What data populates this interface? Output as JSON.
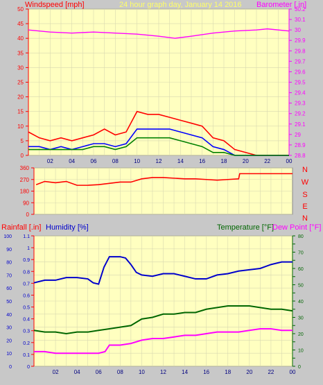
{
  "panel1": {
    "title": "24 hour graph day,  January 14 2016",
    "left_label": "Windspeed [mph]",
    "right_label": "Barometer [.in]",
    "colors": {
      "title": "#ffff66",
      "left": "#ff0000",
      "right": "#ff00ff"
    }
  },
  "panel2": {
    "left_ticks": [
      "360",
      "270",
      "180",
      "90",
      "0"
    ],
    "right_labels": [
      "N",
      "W",
      "S",
      "E",
      "N"
    ]
  },
  "panel3": {
    "rain_label": "Rainfall [.in]",
    "humidity_label": "Humidity [%]",
    "temp_label": "Temperature [°F]",
    "dew_label": "Dew Point [°F]",
    "colors": {
      "rain": "#ff0000",
      "humidity": "#0000cc",
      "temp": "#006600",
      "dew": "#ff00ff"
    }
  },
  "x_ticks": [
    "02",
    "04",
    "06",
    "08",
    "10",
    "12",
    "14",
    "16",
    "18",
    "20",
    "22",
    "00"
  ],
  "chart_data": [
    {
      "type": "line",
      "title": "24 hour graph day,  January 14 2016",
      "ylabel": "Windspeed [mph]",
      "y2label": "Barometer [.in]",
      "ylim": [
        0,
        50
      ],
      "y_ticks": [
        0,
        5,
        10,
        15,
        20,
        25,
        30,
        35,
        40,
        45,
        50
      ],
      "y2lim": [
        28.8,
        30.2
      ],
      "y2_ticks": [
        "28.8",
        "28.9",
        "29",
        "29.1",
        "29.2",
        "29.3",
        "29.4",
        "29.5",
        "29.6",
        "29.7",
        "29.8",
        "29.9",
        "30",
        "30.1",
        "30.2"
      ],
      "series": [
        {
          "name": "Barometer",
          "axis": "right",
          "color": "#ff00ff",
          "x": [
            0,
            2,
            4,
            6,
            8,
            10,
            12,
            13.5,
            15,
            17,
            19,
            21,
            22,
            24
          ],
          "y": [
            30.0,
            29.98,
            29.97,
            29.98,
            29.97,
            29.96,
            29.94,
            29.92,
            29.94,
            29.97,
            29.99,
            30.0,
            30.01,
            29.99
          ]
        },
        {
          "axis": "left",
          "color": "#ff0000",
          "x": [
            0,
            1,
            2,
            3,
            4,
            5,
            6,
            7,
            8,
            9,
            10,
            11,
            12,
            13,
            14,
            15,
            16,
            17,
            18,
            19,
            20,
            21,
            22,
            23,
            24
          ],
          "y": [
            8,
            6,
            5,
            6,
            5,
            6,
            7,
            9,
            7,
            8,
            15,
            14,
            14,
            13,
            12,
            11,
            10,
            6,
            5,
            2,
            1,
            0,
            0,
            0,
            0
          ]
        },
        {
          "axis": "left",
          "color": "#0000ff",
          "x": [
            0,
            1,
            2,
            3,
            4,
            5,
            6,
            7,
            8,
            9,
            10,
            11,
            12,
            13,
            14,
            15,
            16,
            17,
            18,
            19,
            20,
            21,
            22,
            23,
            24
          ],
          "y": [
            3,
            3,
            2,
            3,
            2,
            3,
            4,
            4,
            3,
            4,
            9,
            9,
            9,
            9,
            8,
            7,
            6,
            3,
            2,
            0,
            0,
            0,
            0,
            0,
            0
          ]
        },
        {
          "axis": "left",
          "color": "#008000",
          "x": [
            0,
            1,
            2,
            3,
            4,
            5,
            6,
            7,
            8,
            9,
            10,
            11,
            12,
            13,
            14,
            15,
            16,
            17,
            18,
            19,
            20,
            21,
            22,
            23,
            24
          ],
          "y": [
            2,
            2,
            2,
            2,
            2,
            2,
            3,
            3,
            2,
            3,
            6,
            6,
            6,
            6,
            5,
            4,
            3,
            1,
            1,
            0,
            0,
            0,
            0,
            0,
            0
          ]
        }
      ]
    },
    {
      "type": "line",
      "ylim": [
        0,
        360
      ],
      "y_ticks": [
        0,
        90,
        180,
        270,
        360
      ],
      "series": [
        {
          "axis": "left",
          "color": "#ff0000",
          "x": [
            0.2,
            1,
            2,
            3,
            4,
            5,
            6,
            7,
            8,
            9,
            10,
            11,
            12,
            13,
            14,
            15,
            16,
            17,
            18,
            19,
            19.1,
            20,
            21,
            22,
            23,
            24
          ],
          "y": [
            230,
            255,
            245,
            255,
            225,
            225,
            230,
            240,
            250,
            250,
            275,
            285,
            285,
            280,
            275,
            275,
            270,
            265,
            270,
            275,
            315,
            315,
            315,
            315,
            315,
            315
          ]
        }
      ]
    },
    {
      "type": "line",
      "ylabel": "Rainfall [.in]",
      "y1b_label": "Humidity [%]",
      "y2label": "Temperature [°F]",
      "y2b_label": "Dew Point [°F]",
      "rain_ylim": [
        0,
        1.1
      ],
      "rain_ticks": [
        "0",
        "0.1",
        "0.2",
        "0.3",
        "0.4",
        "0.5",
        "0.6",
        "0.7",
        "0.8",
        "0.9",
        "1",
        "1.1"
      ],
      "humidity_ylim": [
        0,
        100
      ],
      "humidity_ticks": [
        0,
        10,
        20,
        30,
        40,
        50,
        60,
        70,
        80,
        90,
        100
      ],
      "temp_ylim": [
        0,
        80
      ],
      "temp_ticks": [
        0,
        5,
        10,
        15,
        20,
        25,
        30,
        35,
        40,
        45,
        50,
        55,
        60,
        65,
        70,
        75,
        80
      ],
      "series": [
        {
          "name": "Humidity",
          "axis": "humidity",
          "color": "#0000cc",
          "x": [
            0,
            1,
            2,
            3,
            4,
            5,
            5.5,
            6,
            6.5,
            7,
            7.5,
            8,
            8.5,
            9,
            9.5,
            10,
            11,
            12,
            13,
            14,
            15,
            16,
            17,
            18,
            19,
            20,
            21,
            22,
            23,
            24
          ],
          "y": [
            64,
            66,
            66,
            68,
            68,
            67,
            64,
            63,
            76,
            84,
            84,
            84,
            83,
            78,
            72,
            70,
            69,
            71,
            71,
            69,
            67,
            67,
            70,
            71,
            73,
            74,
            75,
            78,
            80,
            80
          ]
        },
        {
          "name": "Temperature",
          "axis": "temp",
          "color": "#006600",
          "x": [
            0,
            1,
            2,
            3,
            4,
            5,
            6,
            7,
            8,
            9,
            10,
            11,
            12,
            13,
            14,
            15,
            16,
            17,
            18,
            19,
            20,
            21,
            22,
            23,
            24
          ],
          "y": [
            22,
            21,
            21,
            20,
            21,
            21,
            22,
            23,
            24,
            25,
            29,
            30,
            32,
            32,
            33,
            33,
            35,
            36,
            37,
            37,
            37,
            36,
            35,
            35,
            34
          ]
        },
        {
          "name": "Dew Point",
          "axis": "temp",
          "color": "#ff00ff",
          "x": [
            0,
            1,
            2,
            3,
            4,
            5,
            6,
            6.6,
            7,
            8,
            9,
            10,
            11,
            12,
            13,
            14,
            15,
            16,
            17,
            18,
            19,
            20,
            21,
            22,
            23,
            24
          ],
          "y": [
            9,
            9,
            8,
            8,
            8,
            8,
            8,
            9,
            13,
            13,
            14,
            16,
            17,
            17,
            18,
            19,
            19,
            20,
            21,
            21,
            21,
            22,
            23,
            23,
            22,
            22
          ]
        }
      ]
    }
  ]
}
